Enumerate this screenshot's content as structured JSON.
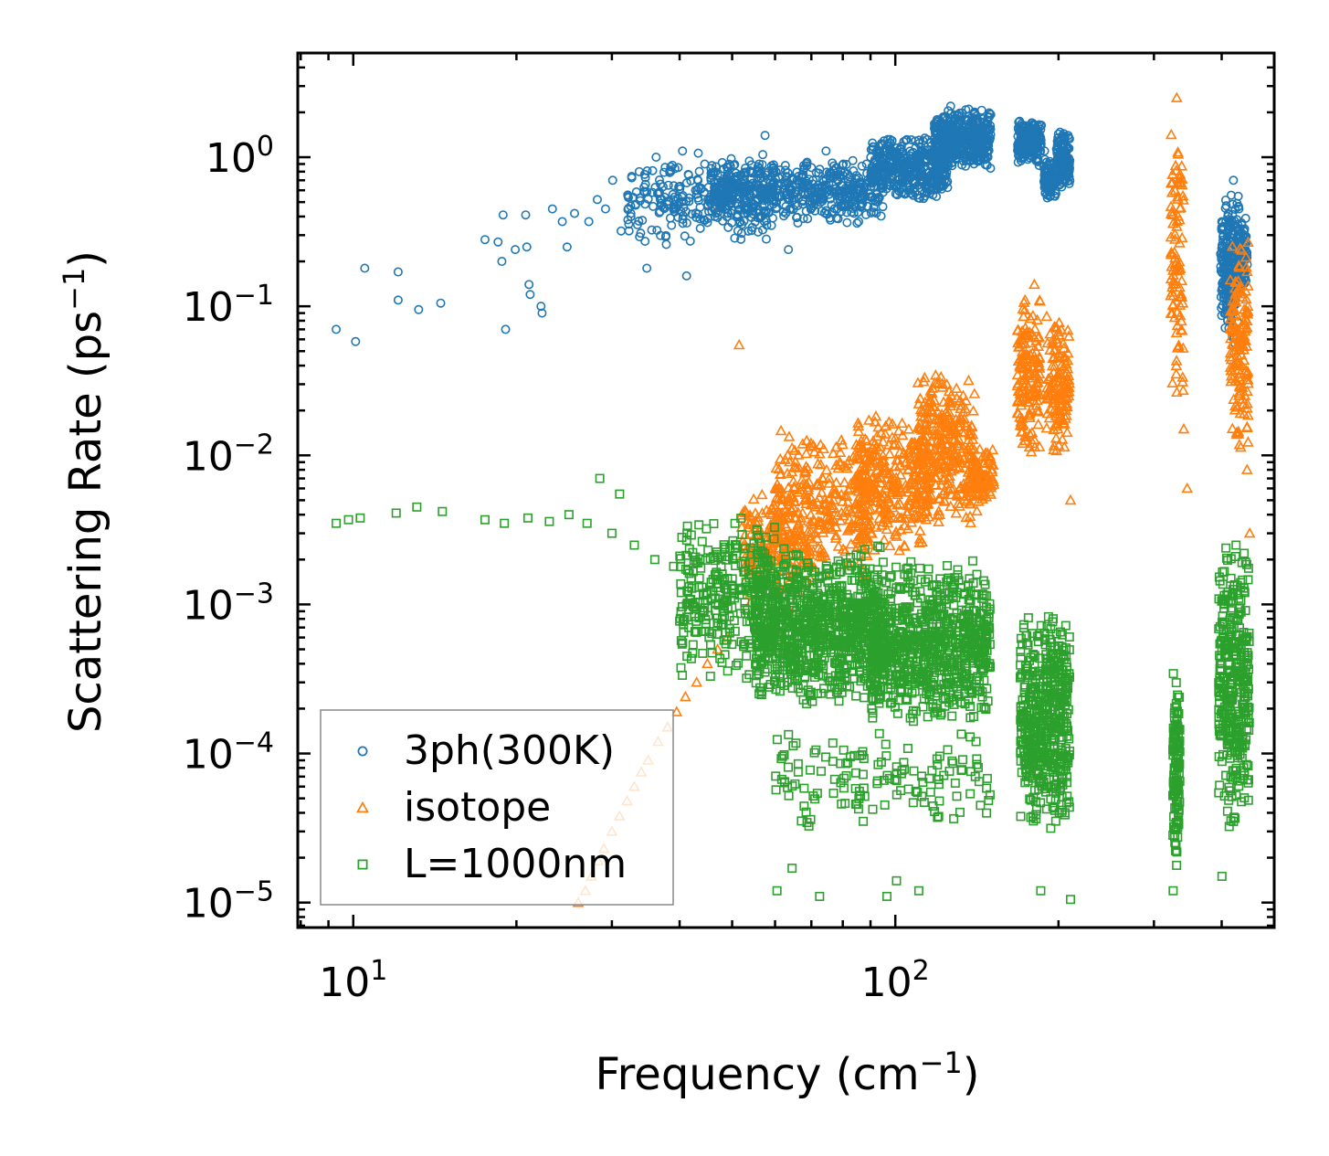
{
  "chart_data": {
    "type": "scatter",
    "title": "",
    "xlabel": {
      "base": "Frequency (cm",
      "sup": "−1",
      "tail": ")"
    },
    "ylabel": {
      "base": "Scattering Rate (ps",
      "sup": "−1",
      "tail": ")"
    },
    "xscale": "log",
    "yscale": "log",
    "xlim": [
      7.9,
      500
    ],
    "ylim": [
      6.8e-06,
      5.0
    ],
    "x_ticks": [
      {
        "value": 10,
        "base": "10",
        "exp": "1"
      },
      {
        "value": 100,
        "base": "10",
        "exp": "2"
      }
    ],
    "y_ticks": [
      {
        "value": 1,
        "base": "10",
        "exp": "0"
      },
      {
        "value": 0.1,
        "base": "10",
        "exp": "−1"
      },
      {
        "value": 0.01,
        "base": "10",
        "exp": "−2"
      },
      {
        "value": 0.001,
        "base": "10",
        "exp": "−3"
      },
      {
        "value": 0.0001,
        "base": "10",
        "exp": "−4"
      },
      {
        "value": 1e-05,
        "base": "10",
        "exp": "−5"
      }
    ],
    "legend": {
      "placement": "lower-left",
      "entries": [
        {
          "label": "3ph(300K)",
          "marker": "circle",
          "color": "#1f77b4"
        },
        {
          "label": "isotope",
          "marker": "triangle",
          "color": "#ff7f0e"
        },
        {
          "label": "L=1000nm",
          "marker": "square",
          "color": "#2ca02c"
        }
      ]
    },
    "series": [
      {
        "name": "3ph(300K)",
        "marker": "circle",
        "color": "#1f77b4",
        "points": [
          [
            9.3,
            0.07
          ],
          [
            10.1,
            0.058
          ],
          [
            10.5,
            0.18
          ],
          [
            12.1,
            0.17
          ],
          [
            12.1,
            0.11
          ],
          [
            13.2,
            0.095
          ],
          [
            14.5,
            0.105
          ],
          [
            17.5,
            0.28
          ],
          [
            18.5,
            0.27
          ],
          [
            18.9,
            0.41
          ],
          [
            18.8,
            0.2
          ],
          [
            19.1,
            0.07
          ],
          [
            19.9,
            0.24
          ],
          [
            20.8,
            0.41
          ],
          [
            20.9,
            0.25
          ],
          [
            21.1,
            0.14
          ],
          [
            21.2,
            0.12
          ],
          [
            22.2,
            0.1
          ],
          [
            22.3,
            0.09
          ],
          [
            23.3,
            0.45
          ],
          [
            24.3,
            0.37
          ],
          [
            24.8,
            0.25
          ],
          [
            25.6,
            0.42
          ],
          [
            27.2,
            0.37
          ],
          [
            28.2,
            0.52
          ],
          [
            29.2,
            0.45
          ],
          [
            30.1,
            0.7
          ],
          [
            31.2,
            0.32
          ],
          [
            32.5,
            0.47
          ],
          [
            33.7,
            0.8
          ],
          [
            34.8,
            0.18
          ],
          [
            36.2,
            1.0
          ],
          [
            37.8,
            0.26
          ],
          [
            38.5,
            0.8
          ],
          [
            40.5,
            1.1
          ],
          [
            41.2,
            0.16
          ],
          [
            42.8,
            0.6
          ],
          [
            44.5,
            0.9
          ],
          [
            47.5,
            0.55
          ],
          [
            50.5,
            0.7
          ],
          [
            54.3,
            0.5
          ],
          [
            57.5,
            1.4
          ],
          [
            60.2,
            0.8
          ],
          [
            63.5,
            0.24
          ],
          [
            66.2,
            0.6
          ],
          [
            70.5,
            0.7
          ],
          [
            74.5,
            1.1
          ],
          [
            80.2,
            0.75
          ],
          [
            88.5,
            0.9
          ],
          [
            95.5,
            0.8
          ],
          [
            102.3,
            1.0
          ],
          [
            110.5,
            1.3
          ],
          [
            118.5,
            1.6
          ],
          [
            126.5,
            2.2
          ],
          [
            134.5,
            1.8
          ],
          [
            142.5,
            1.4
          ],
          [
            148.5,
            1.2
          ],
          [
            170.5,
            1.4
          ],
          [
            178.5,
            1.7
          ],
          [
            188.5,
            1.1
          ],
          [
            196.5,
            0.55
          ],
          [
            203.5,
            1.4
          ],
          [
            209.5,
            0.9
          ],
          [
            410.5,
            0.4
          ],
          [
            420.5,
            0.7
          ],
          [
            430.5,
            0.45
          ],
          [
            440.5,
            0.25
          ]
        ],
        "clusters": [
          {
            "x": [
              32,
              60
            ],
            "y": [
              0.25,
              1.1
            ],
            "n": 260
          },
          {
            "x": [
              45,
              95
            ],
            "y": [
              0.35,
              1.0
            ],
            "n": 520
          },
          {
            "x": [
              90,
              125
            ],
            "y": [
              0.5,
              1.4
            ],
            "n": 420
          },
          {
            "x": [
              118,
              150
            ],
            "y": [
              0.8,
              2.2
            ],
            "n": 420
          },
          {
            "x": [
              168,
              186
            ],
            "y": [
              0.85,
              1.9
            ],
            "n": 170
          },
          {
            "x": [
              188,
              198
            ],
            "y": [
              0.5,
              1.0
            ],
            "n": 90
          },
          {
            "x": [
              198,
              210
            ],
            "y": [
              0.6,
              1.5
            ],
            "n": 120
          },
          {
            "x": [
              398,
              412
            ],
            "y": [
              0.07,
              0.55
            ],
            "n": 110
          },
          {
            "x": [
              412,
              430
            ],
            "y": [
              0.05,
              0.7
            ],
            "n": 130
          },
          {
            "x": [
              430,
              446
            ],
            "y": [
              0.12,
              0.4
            ],
            "n": 90
          }
        ]
      },
      {
        "name": "isotope",
        "marker": "triangle",
        "color": "#ff7f0e",
        "points": [
          [
            26.0,
            1e-05
          ],
          [
            26.8,
            1.2e-05
          ],
          [
            27.5,
            1.5e-05
          ],
          [
            28.3,
            1.9e-05
          ],
          [
            29.0,
            2.3e-05
          ],
          [
            30.0,
            3e-05
          ],
          [
            31.0,
            3.8e-05
          ],
          [
            32.0,
            4.8e-05
          ],
          [
            33.0,
            6e-05
          ],
          [
            34.0,
            7.5e-05
          ],
          [
            35.0,
            9e-05
          ],
          [
            36.5,
            0.00012
          ],
          [
            38.0,
            0.00015
          ],
          [
            39.5,
            0.00019
          ],
          [
            41.0,
            0.00024
          ],
          [
            43.0,
            0.0003
          ],
          [
            45.0,
            0.0004
          ],
          [
            47.0,
            0.0005
          ],
          [
            49.0,
            0.0006
          ],
          [
            51.5,
            0.055
          ],
          [
            180.5,
            0.14
          ],
          [
            210.5,
            0.005
          ],
          [
            330.5,
            2.5
          ],
          [
            340.5,
            0.015
          ],
          [
            345.5,
            0.006
          ],
          [
            450.5,
            0.003
          ],
          [
            445.5,
            0.008
          ]
        ],
        "clusters": [
          {
            "x": [
              52,
              70
            ],
            "y": [
              0.0009,
              0.006
            ],
            "n": 200
          },
          {
            "x": [
              60,
              90
            ],
            "y": [
              0.0015,
              0.015
            ],
            "n": 300
          },
          {
            "x": [
              85,
              115
            ],
            "y": [
              0.002,
              0.02
            ],
            "n": 300
          },
          {
            "x": [
              110,
              140
            ],
            "y": [
              0.003,
              0.04
            ],
            "n": 320
          },
          {
            "x": [
              138,
              152
            ],
            "y": [
              0.004,
              0.012
            ],
            "n": 90
          },
          {
            "x": [
              168,
              185
            ],
            "y": [
              0.008,
              0.14
            ],
            "n": 150
          },
          {
            "x": [
              190,
              210
            ],
            "y": [
              0.01,
              0.1
            ],
            "n": 140
          },
          {
            "x": [
              322,
              340
            ],
            "y": [
              0.02,
              2.0
            ],
            "n": 100
          },
          {
            "x": [
              415,
              448
            ],
            "y": [
              0.01,
              0.35
            ],
            "n": 150
          }
        ]
      },
      {
        "name": "L=1000nm",
        "marker": "square",
        "color": "#2ca02c",
        "points": [
          [
            9.3,
            0.0035
          ],
          [
            9.8,
            0.0037
          ],
          [
            10.3,
            0.0038
          ],
          [
            12.0,
            0.0041
          ],
          [
            13.1,
            0.0045
          ],
          [
            14.6,
            0.0042
          ],
          [
            17.5,
            0.0037
          ],
          [
            19.0,
            0.0035
          ],
          [
            21.0,
            0.0038
          ],
          [
            23.0,
            0.0036
          ],
          [
            25.0,
            0.004
          ],
          [
            27.0,
            0.0035
          ],
          [
            30.0,
            0.003
          ],
          [
            33.0,
            0.0025
          ],
          [
            36.0,
            0.002
          ],
          [
            39.0,
            0.0018
          ],
          [
            42.0,
            0.0015
          ],
          [
            45.0,
            0.0012
          ],
          [
            28.5,
            0.007
          ],
          [
            31.0,
            0.0055
          ],
          [
            60.5,
            1.2e-05
          ],
          [
            64.5,
            1.7e-05
          ],
          [
            72.5,
            1.1e-05
          ],
          [
            96.5,
            1.1e-05
          ],
          [
            100.5,
            1.4e-05
          ],
          [
            110.5,
            1.2e-05
          ],
          [
            185.5,
            1.2e-05
          ],
          [
            210.5,
            1.05e-05
          ],
          [
            325.5,
            1.2e-05
          ],
          [
            400.5,
            1.5e-05
          ],
          [
            420.5,
            3.5e-05
          ]
        ],
        "clusters": [
          {
            "x": [
              40,
              60
            ],
            "y": [
              0.0003,
              0.004
            ],
            "n": 300
          },
          {
            "x": [
              55,
              95
            ],
            "y": [
              0.0002,
              0.0025
            ],
            "n": 900
          },
          {
            "x": [
              90,
              150
            ],
            "y": [
              0.00015,
              0.002
            ],
            "n": 800
          },
          {
            "x": [
              60,
              150
            ],
            "y": [
              3e-05,
              0.00015
            ],
            "n": 140
          },
          {
            "x": [
              170,
              190
            ],
            "y": [
              3e-05,
              0.0009
            ],
            "n": 260
          },
          {
            "x": [
              190,
              210
            ],
            "y": [
              3e-05,
              0.001
            ],
            "n": 240
          },
          {
            "x": [
              325,
              335
            ],
            "y": [
              1.5e-05,
              0.0005
            ],
            "n": 130
          },
          {
            "x": [
              395,
              450
            ],
            "y": [
              3e-05,
              0.003
            ],
            "n": 360
          }
        ]
      }
    ]
  }
}
